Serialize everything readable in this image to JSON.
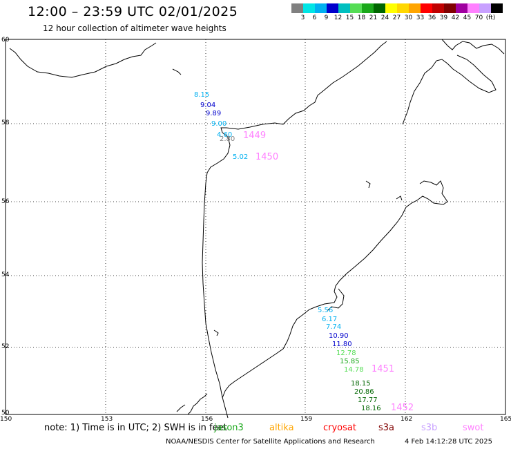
{
  "title": "12:00 – 23:59 UTC 02/01/2025",
  "subtitle": "12 hour collection of altimeter wave heights",
  "legend": {
    "unit": "(ft)",
    "colors": [
      "#808080",
      "#00e5e5",
      "#00b0f0",
      "#0000cc",
      "#00bfbf",
      "#55dd55",
      "#1aa81a",
      "#006600",
      "#ffff00",
      "#ffd700",
      "#ffa500",
      "#ff0000",
      "#c00000",
      "#800000",
      "#a000a0",
      "#ff80ff",
      "#c8a0ff",
      "#000000"
    ],
    "ticks": [
      "3",
      "6",
      "9",
      "12",
      "15",
      "18",
      "21",
      "24",
      "27",
      "30",
      "33",
      "36",
      "39",
      "42",
      "45",
      "70"
    ]
  },
  "axes": {
    "lat_labels": [
      "60",
      "58",
      "56",
      "54",
      "52",
      "50"
    ],
    "lon_labels": [
      "150",
      "153",
      "156",
      "159",
      "162",
      "165"
    ]
  },
  "observations": [
    {
      "text": "8.15",
      "color": "#00b0f0"
    },
    {
      "text": "9.04",
      "color": "#0000cc"
    },
    {
      "text": "9.89",
      "color": "#0000cc"
    },
    {
      "text": "9.00",
      "color": "#00b0f0"
    },
    {
      "text": "4.60",
      "color": "#00b0f0"
    },
    {
      "text": "2.80",
      "color": "#808080"
    },
    {
      "text": "5.02",
      "color": "#00b0f0"
    },
    {
      "text": "5.56",
      "color": "#00b0f0"
    },
    {
      "text": "6.17",
      "color": "#00b0f0"
    },
    {
      "text": "7.74",
      "color": "#00b0f0"
    },
    {
      "text": "10.90",
      "color": "#0000cc"
    },
    {
      "text": "11.80",
      "color": "#0000cc"
    },
    {
      "text": "12.78",
      "color": "#55dd55"
    },
    {
      "text": "15.85",
      "color": "#1aa81a"
    },
    {
      "text": "14.78",
      "color": "#55dd55"
    },
    {
      "text": "18.15",
      "color": "#006600"
    },
    {
      "text": "20.86",
      "color": "#006600"
    },
    {
      "text": "17.77",
      "color": "#006600"
    },
    {
      "text": "18.16",
      "color": "#006600"
    }
  ],
  "passes": [
    {
      "text": "1449",
      "color": "#ff80ff"
    },
    {
      "text": "1450",
      "color": "#ff80ff"
    },
    {
      "text": "1451",
      "color": "#ff80ff"
    },
    {
      "text": "1452",
      "color": "#ff80ff"
    }
  ],
  "footnote": "note: 1) Time is in UTC; 2) SWH is in feet",
  "satellites": [
    {
      "name": "jason3",
      "color": "#1aa81a"
    },
    {
      "name": "altika",
      "color": "#ffa500"
    },
    {
      "name": "cryosat",
      "color": "#ff0000"
    },
    {
      "name": "s3a",
      "color": "#800000"
    },
    {
      "name": "s3b",
      "color": "#c8a0ff"
    },
    {
      "name": "swot",
      "color": "#ff80ff"
    }
  ],
  "credit": "NOAA/NESDIS Center for Satellite Applications and Research",
  "timestamp": "4 Feb 14:12:28 UTC 2025"
}
